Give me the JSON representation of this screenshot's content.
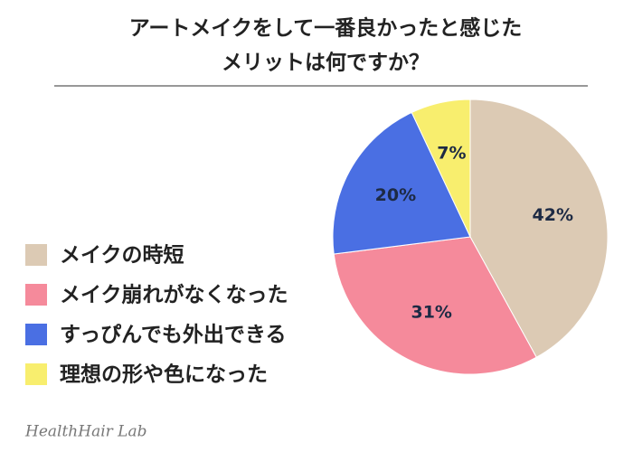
{
  "chart_data": {
    "type": "pie",
    "title": [
      "アートメイクをして一番良かったと感じた",
      "メリットは何ですか？"
    ],
    "categories": [
      "メイクの時短",
      "メイク崩れがなくなった",
      "すっぴんでも外出できる",
      "理想の形や色になった"
    ],
    "values": [
      42,
      31,
      20,
      7
    ],
    "value_labels": [
      "42%",
      "31%",
      "20%",
      "7%"
    ],
    "colors": [
      "#dccab4",
      "#f58a9b",
      "#4a6fe3",
      "#f8ee6e"
    ],
    "legend": "left",
    "source": "HealthHair Lab"
  }
}
